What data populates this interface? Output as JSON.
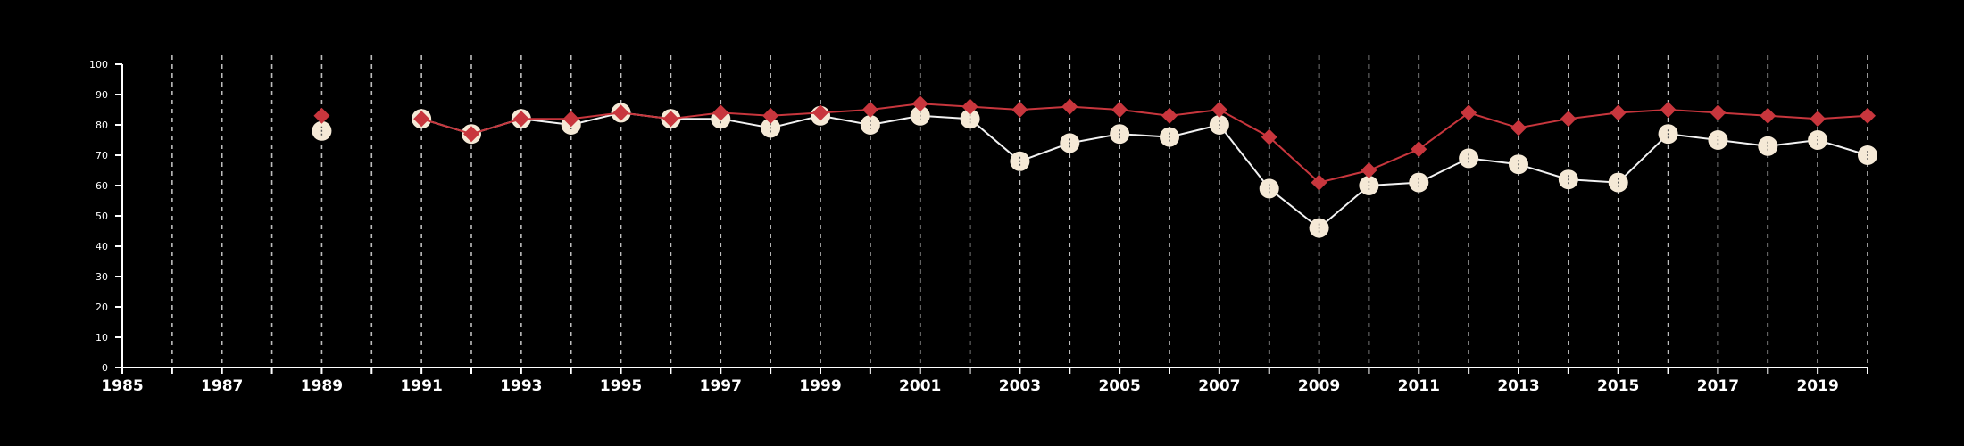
{
  "colors": {
    "background": "#000000",
    "axis": "#ffffff",
    "grid": "#bdbdbd",
    "series_red": "#c8363d",
    "series_cream": "#f5e9d6",
    "series_cream_line": "#f2f2f2"
  },
  "chart_data": {
    "type": "line",
    "title": "",
    "xlabel": "",
    "ylabel": "",
    "xlim": [
      1985,
      2020
    ],
    "ylim": [
      0,
      100
    ],
    "x_ticks": [
      1985,
      1987,
      1989,
      1991,
      1993,
      1995,
      1997,
      1999,
      2001,
      2003,
      2005,
      2007,
      2009,
      2011,
      2013,
      2015,
      2017,
      2019
    ],
    "x_tick_labels": [
      "1985",
      "1987",
      "1989",
      "1991",
      "1993",
      "1995",
      "1997",
      "1999",
      "2001",
      "2003",
      "2005",
      "2007",
      "2009",
      "2011",
      "2013",
      "2015",
      "2017",
      "2019"
    ],
    "y_ticks": [
      0,
      10,
      20,
      30,
      40,
      50,
      60,
      70,
      80,
      90,
      100
    ],
    "y_tick_labels": [
      "0",
      "10",
      "20",
      "30",
      "40",
      "50",
      "60",
      "70",
      "80",
      "90",
      "100"
    ],
    "grid": "vertical dashed at every year",
    "legend": "none",
    "series": [
      {
        "marker": "diamond",
        "color": "#c8363d",
        "points": [
          [
            1989,
            83
          ],
          [
            1991,
            82
          ],
          [
            1992,
            77
          ],
          [
            1993,
            82
          ],
          [
            1994,
            82
          ],
          [
            1995,
            84
          ],
          [
            1996,
            82
          ],
          [
            1997,
            84
          ],
          [
            1998,
            83
          ],
          [
            1999,
            84
          ],
          [
            2000,
            85
          ],
          [
            2001,
            87
          ],
          [
            2002,
            86
          ],
          [
            2003,
            85
          ],
          [
            2004,
            86
          ],
          [
            2005,
            85
          ],
          [
            2006,
            83
          ],
          [
            2007,
            85
          ],
          [
            2008,
            76
          ],
          [
            2009,
            61
          ],
          [
            2010,
            65
          ],
          [
            2011,
            72
          ],
          [
            2012,
            84
          ],
          [
            2013,
            79
          ],
          [
            2014,
            82
          ],
          [
            2015,
            84
          ],
          [
            2016,
            85
          ],
          [
            2017,
            84
          ],
          [
            2018,
            83
          ],
          [
            2019,
            82
          ],
          [
            2020,
            83
          ]
        ]
      },
      {
        "marker": "circle",
        "color": "#f5e9d6",
        "points": [
          [
            1989,
            78
          ],
          [
            1991,
            82
          ],
          [
            1992,
            77
          ],
          [
            1993,
            82
          ],
          [
            1994,
            80
          ],
          [
            1995,
            84
          ],
          [
            1996,
            82
          ],
          [
            1997,
            82
          ],
          [
            1998,
            79
          ],
          [
            1999,
            83
          ],
          [
            2000,
            80
          ],
          [
            2001,
            83
          ],
          [
            2002,
            82
          ],
          [
            2003,
            68
          ],
          [
            2004,
            74
          ],
          [
            2005,
            77
          ],
          [
            2006,
            76
          ],
          [
            2007,
            80
          ],
          [
            2008,
            59
          ],
          [
            2009,
            46
          ],
          [
            2010,
            60
          ],
          [
            2011,
            61
          ],
          [
            2012,
            69
          ],
          [
            2013,
            67
          ],
          [
            2014,
            62
          ],
          [
            2015,
            61
          ],
          [
            2016,
            77
          ],
          [
            2017,
            75
          ],
          [
            2018,
            73
          ],
          [
            2019,
            75
          ],
          [
            2020,
            70
          ]
        ]
      }
    ]
  }
}
